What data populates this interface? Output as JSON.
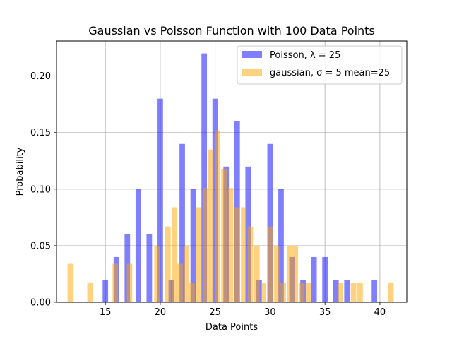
{
  "chart_data": {
    "type": "bar",
    "title": "Gaussian vs Poisson Function with 100 Data Points",
    "xlabel": "Data Points",
    "ylabel": "Probability",
    "xlim": [
      10.55,
      42.45
    ],
    "ylim": [
      0,
      0.231
    ],
    "x_ticks": [
      15,
      20,
      25,
      30,
      35,
      40
    ],
    "y_ticks": [
      0.0,
      0.05,
      0.1,
      0.15,
      0.2
    ],
    "grid": true,
    "legend_position": "top-right",
    "series": [
      {
        "name": "Poisson, λ = 25",
        "color": "#0000ff",
        "opacity": 0.5,
        "bin_width": 0.5,
        "bins": [
          {
            "x": 15.0,
            "value": 0.02
          },
          {
            "x": 16.0,
            "value": 0.04
          },
          {
            "x": 17.0,
            "value": 0.06
          },
          {
            "x": 18.0,
            "value": 0.1
          },
          {
            "x": 19.0,
            "value": 0.06
          },
          {
            "x": 20.0,
            "value": 0.18
          },
          {
            "x": 21.0,
            "value": 0.02
          },
          {
            "x": 22.0,
            "value": 0.14
          },
          {
            "x": 23.0,
            "value": 0.1
          },
          {
            "x": 24.0,
            "value": 0.22
          },
          {
            "x": 25.0,
            "value": 0.18
          },
          {
            "x": 26.0,
            "value": 0.12
          },
          {
            "x": 27.0,
            "value": 0.16
          },
          {
            "x": 28.0,
            "value": 0.12
          },
          {
            "x": 29.0,
            "value": 0.02
          },
          {
            "x": 30.0,
            "value": 0.14
          },
          {
            "x": 31.0,
            "value": 0.1
          },
          {
            "x": 32.0,
            "value": 0.04
          },
          {
            "x": 33.0,
            "value": 0.02
          },
          {
            "x": 34.0,
            "value": 0.04
          },
          {
            "x": 35.0,
            "value": 0.04
          },
          {
            "x": 36.0,
            "value": 0.02
          },
          {
            "x": 37.0,
            "value": 0.02
          },
          {
            "x": 39.5,
            "value": 0.02
          }
        ]
      },
      {
        "name": "gaussian, σ = 5 mean=25",
        "color": "#ffa500",
        "opacity": 0.5,
        "bin_width": 0.5,
        "bins": [
          {
            "x": 11.8,
            "value": 0.034
          },
          {
            "x": 13.6,
            "value": 0.017
          },
          {
            "x": 15.9,
            "value": 0.034
          },
          {
            "x": 17.2,
            "value": 0.034
          },
          {
            "x": 19.7,
            "value": 0.05
          },
          {
            "x": 20.7,
            "value": 0.067
          },
          {
            "x": 21.3,
            "value": 0.084
          },
          {
            "x": 21.8,
            "value": 0.034
          },
          {
            "x": 22.4,
            "value": 0.05
          },
          {
            "x": 22.9,
            "value": 0.017
          },
          {
            "x": 23.5,
            "value": 0.084
          },
          {
            "x": 24.1,
            "value": 0.101
          },
          {
            "x": 24.6,
            "value": 0.135
          },
          {
            "x": 25.2,
            "value": 0.152
          },
          {
            "x": 25.8,
            "value": 0.118
          },
          {
            "x": 26.4,
            "value": 0.101
          },
          {
            "x": 27.0,
            "value": 0.084
          },
          {
            "x": 27.6,
            "value": 0.084
          },
          {
            "x": 28.2,
            "value": 0.067
          },
          {
            "x": 28.8,
            "value": 0.05
          },
          {
            "x": 29.4,
            "value": 0.017
          },
          {
            "x": 30.0,
            "value": 0.067
          },
          {
            "x": 30.6,
            "value": 0.05
          },
          {
            "x": 31.2,
            "value": 0.017
          },
          {
            "x": 31.8,
            "value": 0.05
          },
          {
            "x": 32.3,
            "value": 0.05
          },
          {
            "x": 32.9,
            "value": 0.017
          },
          {
            "x": 33.5,
            "value": 0.017
          },
          {
            "x": 36.4,
            "value": 0.017
          },
          {
            "x": 37.6,
            "value": 0.017
          },
          {
            "x": 38.2,
            "value": 0.017
          },
          {
            "x": 41.0,
            "value": 0.017
          }
        ]
      }
    ]
  }
}
